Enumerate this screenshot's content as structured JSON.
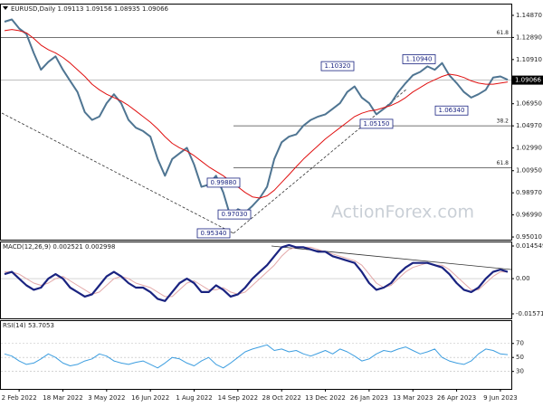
{
  "chart_data": [
    {
      "type": "line",
      "title": "EURUSD,Daily 1.09113 1.09156 1.08935 1.09066",
      "watermark": "ActionForex.com",
      "categories": [
        null,
        null,
        "2 Feb 2022",
        null,
        null,
        null,
        null,
        null,
        "18 Mar 2022",
        null,
        null,
        null,
        null,
        null,
        "3 May 2022",
        null,
        null,
        null,
        null,
        null,
        "16 Jun 2022",
        null,
        null,
        null,
        null,
        null,
        "1 Aug 2022",
        null,
        null,
        null,
        null,
        null,
        "14 Sep 2022",
        null,
        null,
        null,
        null,
        null,
        "28 Oct 2022",
        null,
        null,
        null,
        null,
        null,
        "13 Dec 2022",
        null,
        null,
        null,
        null,
        null,
        "26 Jan 2023",
        null,
        null,
        null,
        null,
        null,
        "13 Mar 2023",
        null,
        null,
        null,
        null,
        null,
        "26 Apr 2023",
        null,
        null,
        null,
        null,
        null,
        "9 Jun 2023",
        null
      ],
      "series": [
        {
          "color": "#4f7592",
          "values": [
            1.143,
            1.145,
            1.137,
            1.132,
            1.115,
            1.1,
            1.107,
            1.112,
            1.1,
            1.09,
            1.08,
            1.062,
            1.055,
            1.058,
            1.07,
            1.078,
            1.07,
            1.055,
            1.048,
            1.045,
            1.04,
            1.02,
            1.005,
            1.02,
            1.025,
            1.03,
            1.015,
            0.995,
            0.997,
            1.005,
            0.99,
            0.968,
            0.975,
            0.972,
            0.978,
            0.985,
            0.995,
            1.02,
            1.035,
            1.04,
            1.042,
            1.05,
            1.055,
            1.058,
            1.06,
            1.065,
            1.07,
            1.08,
            1.085,
            1.075,
            1.07,
            1.06,
            1.065,
            1.07,
            1.08,
            1.088,
            1.095,
            1.098,
            1.103,
            1.1,
            1.106,
            1.095,
            1.088,
            1.08,
            1.075,
            1.078,
            1.082,
            1.093,
            1.094,
            1.091
          ]
        },
        {
          "color": "#e01010",
          "values": [
            1.135,
            1.136,
            1.135,
            1.133,
            1.128,
            1.122,
            1.118,
            1.115,
            1.111,
            1.106,
            1.1,
            1.094,
            1.087,
            1.082,
            1.078,
            1.075,
            1.072,
            1.068,
            1.063,
            1.058,
            1.053,
            1.047,
            1.04,
            1.034,
            1.03,
            1.027,
            1.023,
            1.018,
            1.013,
            1.009,
            1.005,
            1,
            0.995,
            0.99,
            0.986,
            0.985,
            0.987,
            0.992,
            0.999,
            1.006,
            1.013,
            1.02,
            1.026,
            1.032,
            1.038,
            1.043,
            1.048,
            1.053,
            1.058,
            1.061,
            1.063,
            1.064,
            1.066,
            1.068,
            1.071,
            1.075,
            1.08,
            1.084,
            1.088,
            1.091,
            1.094,
            1.096,
            1.095,
            1.093,
            1.09,
            1.088,
            1.087,
            1.087,
            1.088,
            1.089
          ]
        }
      ],
      "last_price": 1.09066,
      "ylim": [
        0.9477,
        1.1584
      ],
      "yticks": [
        {
          "value": 1.1487,
          "label": "1.14870"
        },
        {
          "value": 1.1289,
          "label": "1.12890"
        },
        {
          "value": 1.1091,
          "label": "1.10910"
        },
        {
          "value": 1.0893,
          "label": "1.08930"
        },
        {
          "value": 1.0695,
          "label": "1.06950"
        },
        {
          "value": 1.0497,
          "label": "1.04970"
        },
        {
          "value": 1.0299,
          "label": "1.02990"
        },
        {
          "value": 1.0095,
          "label": "1.00950"
        },
        {
          "value": 0.9897,
          "label": "0.98970"
        },
        {
          "value": 0.9699,
          "label": "0.96990"
        },
        {
          "value": 0.9501,
          "label": "0.95010"
        }
      ],
      "fib_levels": [
        {
          "value": 1.1289,
          "label": "61.8"
        },
        {
          "value": 1.0497,
          "label": "38.2"
        },
        {
          "value": 1.0122,
          "label": "61.8"
        }
      ],
      "price_labels": [
        {
          "value": 1.1032,
          "label": "1.10320"
        },
        {
          "value": 1.1094,
          "label": "1.10940"
        },
        {
          "value": 1.0515,
          "label": "1.05150"
        },
        {
          "value": 1.0634,
          "label": "1.06340"
        },
        {
          "value": 0.9534,
          "label": "0.95340"
        },
        {
          "value": 0.9988,
          "label": "0.99880"
        },
        {
          "value": 0.9703,
          "label": "0.97030"
        }
      ]
    },
    {
      "type": "line",
      "title": "MACD(12,26,9) 0.002521 0.002998",
      "series": [
        {
          "color": "#e3a8a8",
          "values": [
            0.003,
            0.003,
            0.002,
            0,
            -0.002,
            -0.003,
            -0.002,
            0,
            0.001,
            -0.001,
            -0.003,
            -0.005,
            -0.007,
            -0.006,
            -0.003,
            0,
            0.001,
            0,
            -0.002,
            -0.003,
            -0.004,
            -0.006,
            -0.008,
            -0.008,
            -0.005,
            -0.002,
            -0.001,
            -0.003,
            -0.005,
            -0.005,
            -0.004,
            -0.006,
            -0.007,
            -0.006,
            -0.003,
            0,
            0.003,
            0.006,
            0.01,
            0.013,
            0.014,
            0.014,
            0.014,
            0.013,
            0.012,
            0.011,
            0.01,
            0.009,
            0.008,
            0.006,
            0.002,
            -0.002,
            -0.004,
            -0.003,
            0,
            0.003,
            0.005,
            0.006,
            0.007,
            0.006,
            0.006,
            0.004,
            0.001,
            -0.002,
            -0.005,
            -0.005,
            -0.002,
            0.001,
            0.003,
            0.003
          ]
        },
        {
          "color": "#1a2380",
          "values": [
            0.002,
            0.003,
            0,
            -0.003,
            -0.005,
            -0.004,
            0,
            0.002,
            0,
            -0.004,
            -0.006,
            -0.008,
            -0.007,
            -0.003,
            0.001,
            0.003,
            0.001,
            -0.002,
            -0.004,
            -0.004,
            -0.006,
            -0.009,
            -0.01,
            -0.006,
            -0.002,
            0,
            -0.002,
            -0.006,
            -0.006,
            -0.003,
            -0.005,
            -0.008,
            -0.007,
            -0.004,
            0,
            0.003,
            0.006,
            0.01,
            0.014,
            0.015,
            0.014,
            0.014,
            0.013,
            0.012,
            0.012,
            0.01,
            0.009,
            0.008,
            0.007,
            0.003,
            -0.002,
            -0.005,
            -0.004,
            -0.002,
            0.002,
            0.005,
            0.007,
            0.007,
            0.007,
            0.006,
            0.005,
            0.002,
            -0.002,
            -0.005,
            -0.006,
            -0.004,
            0,
            0.003,
            0.004,
            0.003
          ]
        }
      ],
      "ylim": [
        -0.01773,
        0.01616
      ],
      "yticks": [
        0.014549,
        {
          "value": 0,
          "label": "0.00"
        },
        -0.015712
      ]
    },
    {
      "type": "line",
      "title": "RSI(14) 53.7053",
      "series": [
        {
          "color": "#3d9ee0",
          "values": [
            55,
            52,
            45,
            40,
            42,
            48,
            55,
            50,
            42,
            38,
            40,
            45,
            48,
            55,
            52,
            45,
            42,
            40,
            43,
            45,
            40,
            35,
            42,
            50,
            48,
            42,
            38,
            45,
            50,
            40,
            35,
            42,
            50,
            58,
            62,
            65,
            68,
            60,
            62,
            58,
            60,
            55,
            52,
            56,
            60,
            55,
            62,
            58,
            52,
            45,
            48,
            55,
            60,
            58,
            62,
            65,
            60,
            55,
            58,
            62,
            50,
            45,
            42,
            40,
            45,
            55,
            62,
            60,
            55,
            54
          ]
        }
      ],
      "ylim": [
        5,
        102
      ],
      "yticks": [
        70,
        50,
        30
      ]
    }
  ]
}
